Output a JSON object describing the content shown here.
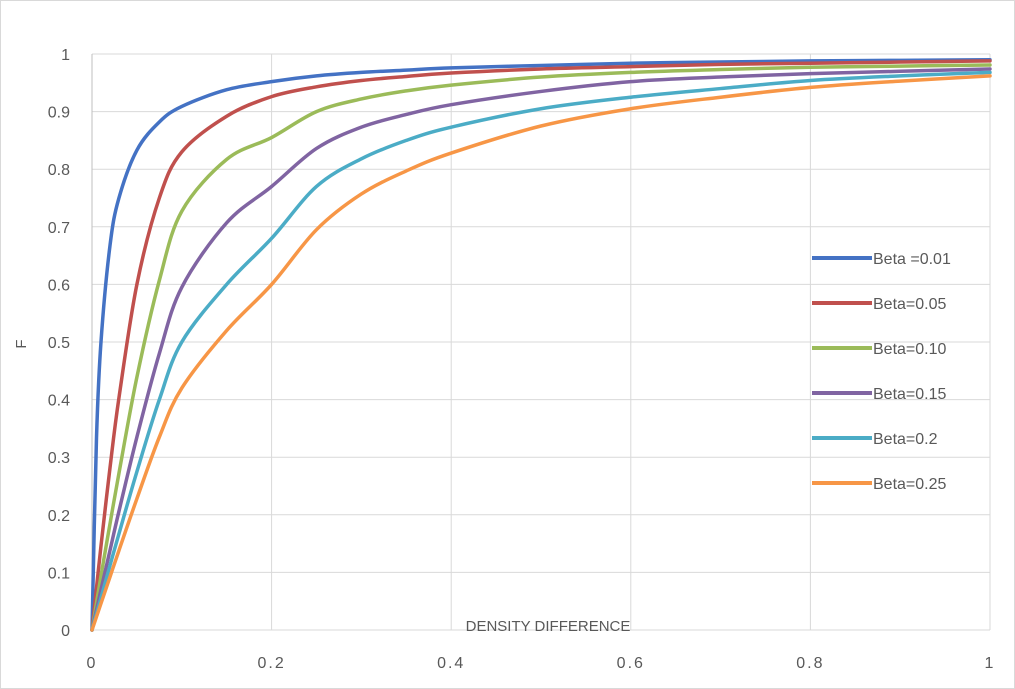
{
  "chart_data": {
    "type": "line",
    "title": "",
    "xlabel": "DENSITY DIFFERENCE",
    "ylabel": "F",
    "xlim": [
      0,
      1
    ],
    "ylim": [
      0,
      1
    ],
    "x_ticks": [
      0,
      0.2,
      0.4,
      0.6,
      0.8,
      1
    ],
    "x_tick_labels": [
      "0",
      "0.2",
      "0.4",
      "0.6",
      "0.8",
      "1"
    ],
    "y_ticks": [
      0,
      0.1,
      0.2,
      0.3,
      0.4,
      0.5,
      0.6,
      0.7,
      0.8,
      0.9,
      1
    ],
    "y_tick_labels": [
      "0",
      "0.1",
      "0.2",
      "0.3",
      "0.4",
      "0.5",
      "0.6",
      "0.7",
      "0.8",
      "0.9",
      "1"
    ],
    "grid": true,
    "legend_position": "right",
    "x": [
      0,
      0.005,
      0.01,
      0.02,
      0.03,
      0.05,
      0.075,
      0.1,
      0.15,
      0.2,
      0.25,
      0.3,
      0.35,
      0.4,
      0.5,
      0.6,
      0.7,
      0.8,
      0.9,
      1.0
    ],
    "series": [
      {
        "name": "Beta =0.01",
        "color": "#4472C4",
        "values": [
          0,
          0.333,
          0.5,
          0.667,
          0.75,
          0.833,
          0.882,
          0.909,
          0.938,
          0.952,
          0.962,
          0.968,
          0.972,
          0.976,
          0.98,
          0.984,
          0.986,
          0.988,
          0.989,
          0.99
        ]
      },
      {
        "name": "Beta=0.05",
        "color": "#C0504D",
        "values": [
          0,
          0.073,
          0.146,
          0.281,
          0.403,
          0.6,
          0.75,
          0.83,
          0.892,
          0.926,
          0.943,
          0.954,
          0.961,
          0.967,
          0.974,
          0.978,
          0.982,
          0.984,
          0.986,
          0.988
        ]
      },
      {
        "name": "Beta=0.10",
        "color": "#9BBB59",
        "values": [
          0,
          0.047,
          0.094,
          0.184,
          0.272,
          0.439,
          0.607,
          0.727,
          0.817,
          0.855,
          0.9,
          0.922,
          0.936,
          0.946,
          0.96,
          0.968,
          0.973,
          0.977,
          0.979,
          0.981
        ]
      },
      {
        "name": "Beta=0.15",
        "color": "#8064A2",
        "values": [
          0,
          0.035,
          0.07,
          0.138,
          0.206,
          0.335,
          0.48,
          0.595,
          0.707,
          0.77,
          0.836,
          0.873,
          0.895,
          0.912,
          0.935,
          0.952,
          0.96,
          0.966,
          0.97,
          0.974
        ]
      },
      {
        "name": "Beta=0.2",
        "color": "#4BACC6",
        "values": [
          0,
          0.028,
          0.056,
          0.112,
          0.167,
          0.275,
          0.4,
          0.5,
          0.6,
          0.68,
          0.77,
          0.818,
          0.85,
          0.873,
          0.905,
          0.925,
          0.94,
          0.954,
          0.962,
          0.968
        ]
      },
      {
        "name": "Beta=0.25",
        "color": "#F79646",
        "values": [
          0,
          0.023,
          0.046,
          0.092,
          0.138,
          0.228,
          0.335,
          0.42,
          0.52,
          0.6,
          0.695,
          0.757,
          0.797,
          0.828,
          0.875,
          0.905,
          0.925,
          0.942,
          0.953,
          0.962
        ]
      }
    ]
  }
}
